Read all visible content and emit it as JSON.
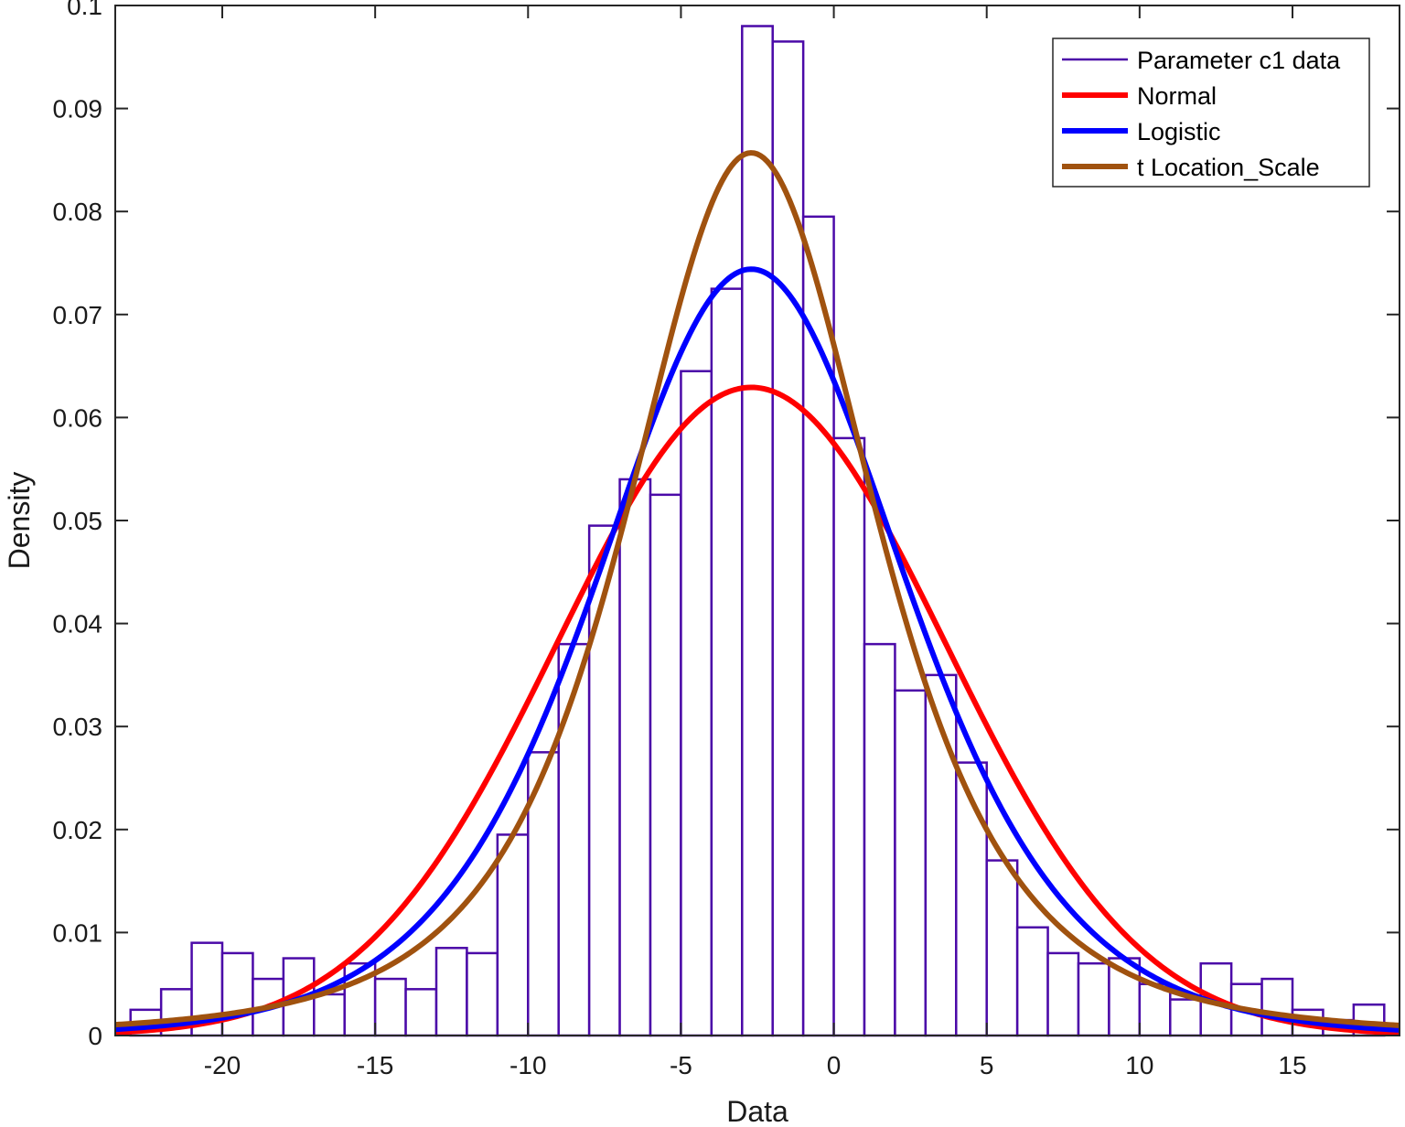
{
  "chart_data": {
    "type": "bar",
    "subtype": "histogram-with-fitted-pdfs",
    "title": "",
    "xlabel": "Data",
    "ylabel": "Density",
    "xlim": [
      -23.5,
      18.5
    ],
    "ylim": [
      0,
      0.1
    ],
    "xticks": [
      -20,
      -15,
      -10,
      -5,
      0,
      5,
      10,
      15
    ],
    "xtick_labels": [
      "-20",
      "-15",
      "-10",
      "-5",
      "0",
      "5",
      "10",
      "15"
    ],
    "yticks": [
      0,
      0.01,
      0.02,
      0.03,
      0.04,
      0.05,
      0.06,
      0.07,
      0.08,
      0.09,
      0.1
    ],
    "ytick_labels": [
      "0",
      "0.01",
      "0.02",
      "0.03",
      "0.04",
      "0.05",
      "0.06",
      "0.07",
      "0.08",
      "0.09",
      "0.1"
    ],
    "grid": false,
    "legend_position": "top-right",
    "histogram": {
      "name": "Parameter c1 data",
      "color": "#4b0aa8",
      "bin_start": -23,
      "bin_width": 1,
      "values": [
        0.0025,
        0.0045,
        0.009,
        0.008,
        0.0055,
        0.0075,
        0.004,
        0.007,
        0.0055,
        0.0045,
        0.0085,
        0.008,
        0.0195,
        0.0275,
        0.038,
        0.0495,
        0.054,
        0.0525,
        0.0645,
        0.0725,
        0.098,
        0.0965,
        0.0795,
        0.058,
        0.038,
        0.0335,
        0.035,
        0.0265,
        0.017,
        0.0105,
        0.008,
        0.007,
        0.0075,
        0.005,
        0.0035,
        0.007,
        0.005,
        0.0055,
        0.0025,
        0.0015,
        0.003
      ]
    },
    "series": [
      {
        "name": "Normal",
        "color": "#ff0000",
        "dist": "normal",
        "params": {
          "mu": -2.7,
          "sigma": 6.34
        }
      },
      {
        "name": "Logistic",
        "color": "#0000ff",
        "dist": "logistic",
        "params": {
          "mu": -2.7,
          "s": 3.36
        }
      },
      {
        "name": "t Location_Scale",
        "color": "#a0520f",
        "dist": "tlocationscale",
        "params": {
          "mu": -2.7,
          "sigma": 4.3,
          "nu": 3.1
        }
      }
    ]
  }
}
